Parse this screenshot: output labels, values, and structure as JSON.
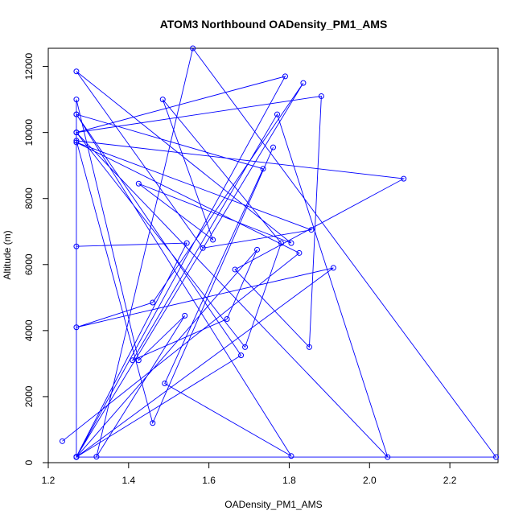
{
  "chart_data": {
    "type": "line",
    "title": "ATOM3 Northbound OADensity_PM1_AMS",
    "xlabel": "OADensity_PM1_AMS",
    "ylabel": "Altitude (m)",
    "xlim": [
      1.2,
      2.32
    ],
    "ylim": [
      0,
      12550
    ],
    "xticks": [
      1.2,
      1.4,
      1.6,
      1.8,
      2.0,
      2.2
    ],
    "xtick_labels": [
      "1.2",
      "1.4",
      "1.6",
      "1.8",
      "2.0",
      "2.2"
    ],
    "yticks": [
      0,
      2000,
      4000,
      6000,
      8000,
      10000,
      12000
    ],
    "ytick_labels": [
      "0",
      "2000",
      "4000",
      "6000",
      "8000",
      "10000",
      "12000"
    ],
    "grid": false,
    "legend": "none",
    "series": [
      {
        "color": "#0000ff",
        "marker": "open-circle",
        "x": [
          1.235,
          1.825,
          1.27,
          1.855,
          1.585,
          1.27,
          1.805,
          1.425,
          1.61,
          1.485,
          1.78,
          1.69,
          1.27,
          1.79,
          1.27,
          1.27,
          1.425,
          1.54,
          1.32,
          1.56,
          2.315,
          1.27,
          1.91,
          1.27,
          1.46,
          1.835,
          1.27,
          1.545,
          1.27,
          1.27,
          1.735,
          1.49,
          1.805,
          1.27,
          1.68,
          1.27,
          1.72,
          1.645,
          1.41,
          1.77,
          2.045,
          1.27,
          1.88,
          1.85,
          1.665,
          2.085,
          1.27,
          1.46,
          1.76
        ],
        "y": [
          650,
          6350,
          9700,
          7050,
          6500,
          11850,
          6650,
          8450,
          6750,
          11000,
          6650,
          3500,
          10000,
          11700,
          170,
          11000,
          3100,
          4450,
          180,
          12550,
          170,
          170,
          5900,
          4100,
          4850,
          11500,
          180,
          6650,
          6550,
          10550,
          8900,
          2400,
          200,
          10550,
          3250,
          170,
          6450,
          4350,
          3100,
          10550,
          170,
          10000,
          11100,
          3500,
          5850,
          8600,
          9750,
          1200,
          9550
        ]
      }
    ]
  }
}
